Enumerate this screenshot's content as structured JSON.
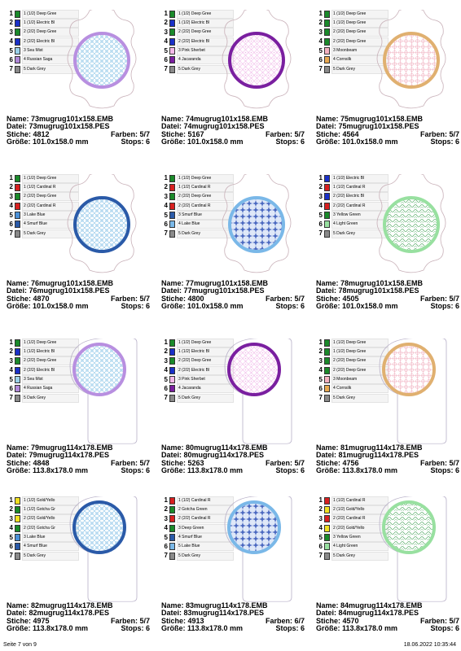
{
  "cells": [
    {
      "name": "Name: 73mugrug101x158.EMB",
      "datei": "Datei: 73mugrug101x158.PES",
      "stiche": "Stiche: 4812",
      "farben": "Farben: 5/7",
      "groesse": "Größe: 101.0x158.0 mm",
      "stops": "Stops: 6",
      "shape": "scallop",
      "ring": "#b88fe0",
      "fill": "#8fc8e8",
      "pattern": "grid",
      "colors": [
        {
          "n": "1",
          "c": "#1a8a2a",
          "t": "1 (1/2) Deep Gree"
        },
        {
          "n": "2",
          "c": "#1a30c8",
          "t": "1 (1/2) Electric Bl"
        },
        {
          "n": "3",
          "c": "#1a8a2a",
          "t": "2 (2/2) Deep Gree"
        },
        {
          "n": "4",
          "c": "#1a30c8",
          "t": "2 (2/2) Electric Bl"
        },
        {
          "n": "5",
          "c": "#9ad0e8",
          "t": "3 Sea Mist"
        },
        {
          "n": "6",
          "c": "#b088d8",
          "t": "4 Russian Saga"
        },
        {
          "n": "7",
          "c": "#8a8a8a",
          "t": "5 Dark Grey"
        }
      ]
    },
    {
      "name": "Name: 74mugrug101x158.EMB",
      "datei": "Datei: 74mugrug101x158.PES",
      "stiche": "Stiche: 5167",
      "farben": "Farben: 5/7",
      "groesse": "Größe: 101.0x158.0 mm",
      "stops": "Stops: 6",
      "shape": "scallop",
      "ring": "#7a1fa0",
      "fill": "#f0b8e8",
      "pattern": "diamond",
      "colors": [
        {
          "n": "1",
          "c": "#1a8a2a",
          "t": "1 (1/2) Deep Gree"
        },
        {
          "n": "2",
          "c": "#1a30c8",
          "t": "1 (1/2) Electric Bl"
        },
        {
          "n": "3",
          "c": "#1a8a2a",
          "t": "2 (2/2) Deep Gree"
        },
        {
          "n": "4",
          "c": "#1a30c8",
          "t": "2 (2/2) Electric Bl"
        },
        {
          "n": "5",
          "c": "#f4b8e8",
          "t": "3 Pink Sherbet"
        },
        {
          "n": "6",
          "c": "#7a1fa0",
          "t": "4 Jacaranda"
        },
        {
          "n": "7",
          "c": "#8a8a8a",
          "t": "5 Dark Grey"
        }
      ]
    },
    {
      "name": "Name: 75mugrug101x158.EMB",
      "datei": "Datei: 75mugrug101x158.PES",
      "stiche": "Stiche: 4564",
      "farben": "Farben: 5/7",
      "groesse": "Größe: 101.0x158.0 mm",
      "stops": "Stops: 6",
      "shape": "scallop",
      "ring": "#e0b070",
      "fill": "#f0b0c0",
      "pattern": "lattice",
      "colors": [
        {
          "n": "1",
          "c": "#1a8a2a",
          "t": "1 (1/2) Deep Gree"
        },
        {
          "n": "2",
          "c": "#1a8a2a",
          "t": "1 (1/2) Deep Gree"
        },
        {
          "n": "3",
          "c": "#1a8a2a",
          "t": "2 (2/2) Deep Gree"
        },
        {
          "n": "4",
          "c": "#1a8a2a",
          "t": "2 (2/2) Deep Gree"
        },
        {
          "n": "5",
          "c": "#f4b0c0",
          "t": "3 Moonbeam"
        },
        {
          "n": "6",
          "c": "#e8a850",
          "t": "4 Cornsilk"
        },
        {
          "n": "7",
          "c": "#8a8a8a",
          "t": "5 Dark Grey"
        }
      ]
    },
    {
      "name": "Name: 76mugrug101x158.EMB",
      "datei": "Datei: 76mugrug101x158.PES",
      "stiche": "Stiche: 4870",
      "farben": "Farben: 5/7",
      "groesse": "Größe: 101.0x158.0 mm",
      "stops": "Stops: 6",
      "shape": "scallop",
      "ring": "#2a5aa8",
      "fill": "#8cc4e8",
      "pattern": "grid",
      "colors": [
        {
          "n": "1",
          "c": "#1a8a2a",
          "t": "1 (1/2) Deep Gree"
        },
        {
          "n": "2",
          "c": "#d82020",
          "t": "1 (1/2) Cardinal R"
        },
        {
          "n": "3",
          "c": "#1a8a2a",
          "t": "2 (2/2) Deep Gree"
        },
        {
          "n": "4",
          "c": "#d82020",
          "t": "2 (2/2) Cardinal R"
        },
        {
          "n": "5",
          "c": "#4a90d8",
          "t": "3 Lake Blue"
        },
        {
          "n": "6",
          "c": "#2a5aa8",
          "t": "4 Smurf Blue"
        },
        {
          "n": "7",
          "c": "#8a8a8a",
          "t": "5 Dark Grey"
        }
      ]
    },
    {
      "name": "Name: 77mugrug101x158.EMB",
      "datei": "Datei: 77mugrug101x158.PES",
      "stiche": "Stiche: 4800",
      "farben": "Farben: 5/7",
      "groesse": "Größe: 101.0x158.0 mm",
      "stops": "Stops: 6",
      "shape": "scallop",
      "ring": "#7ab8e8",
      "fill": "#4a68c0",
      "pattern": "star",
      "colors": [
        {
          "n": "1",
          "c": "#1a8a2a",
          "t": "1 (1/2) Deep Gree"
        },
        {
          "n": "2",
          "c": "#d82020",
          "t": "1 (1/2) Cardinal R"
        },
        {
          "n": "3",
          "c": "#1a8a2a",
          "t": "2 (2/2) Deep Gree"
        },
        {
          "n": "4",
          "c": "#d82020",
          "t": "2 (2/2) Cardinal R"
        },
        {
          "n": "5",
          "c": "#2a5aa8",
          "t": "3 Smurf Blue"
        },
        {
          "n": "6",
          "c": "#7ab8e8",
          "t": "4 Lake Blue"
        },
        {
          "n": "7",
          "c": "#8a8a8a",
          "t": "5 Dark Grey"
        }
      ]
    },
    {
      "name": "Name: 78mugrug101x158.EMB",
      "datei": "Datei: 78mugrug101x158.PES",
      "stiche": "Stiche: 4505",
      "farben": "Farben: 5/7",
      "groesse": "Größe: 101.0x158.0 mm",
      "stops": "Stops: 6",
      "shape": "scallop",
      "ring": "#98e0a0",
      "fill": "#60b070",
      "pattern": "wave",
      "colors": [
        {
          "n": "1",
          "c": "#1a30c8",
          "t": "1 (1/2) Electric Bl"
        },
        {
          "n": "2",
          "c": "#d82020",
          "t": "1 (1/2) Cardinal R"
        },
        {
          "n": "3",
          "c": "#1a30c8",
          "t": "2 (2/2) Electric Bl"
        },
        {
          "n": "4",
          "c": "#d82020",
          "t": "2 (2/2) Cardinal R"
        },
        {
          "n": "5",
          "c": "#1a8a2a",
          "t": "3 Yellow Green"
        },
        {
          "n": "6",
          "c": "#98e0a0",
          "t": "4 Light Green"
        },
        {
          "n": "7",
          "c": "#8a8a8a",
          "t": "5 Dark Grey"
        }
      ]
    },
    {
      "name": "Name: 79mugrug114x178.EMB",
      "datei": "Datei: 79mugrug114x178.PES",
      "stiche": "Stiche: 4848",
      "farben": "Farben: 5/7",
      "groesse": "Größe: 113.8x178.0 mm",
      "stops": "Stops: 6",
      "shape": "tag",
      "ring": "#b88fe0",
      "fill": "#8fc8e8",
      "pattern": "grid",
      "colors": [
        {
          "n": "1",
          "c": "#1a8a2a",
          "t": "1 (1/2) Deep Gree"
        },
        {
          "n": "2",
          "c": "#1a30c8",
          "t": "1 (1/2) Electric Bl"
        },
        {
          "n": "3",
          "c": "#1a8a2a",
          "t": "2 (2/2) Deep Gree"
        },
        {
          "n": "4",
          "c": "#1a30c8",
          "t": "2 (2/2) Electric Bl"
        },
        {
          "n": "5",
          "c": "#9ad0e8",
          "t": "3 Sea Mist"
        },
        {
          "n": "6",
          "c": "#b088d8",
          "t": "4 Russian Saga"
        },
        {
          "n": "7",
          "c": "#8a8a8a",
          "t": "5 Dark Grey"
        }
      ]
    },
    {
      "name": "Name: 80mugrug114x178.EMB",
      "datei": "Datei: 80mugrug114x178.PES",
      "stiche": "Stiche: 5263",
      "farben": "Farben: 5/7",
      "groesse": "Größe: 113.8x178.0 mm",
      "stops": "Stops: 6",
      "shape": "tag",
      "ring": "#7a1fa0",
      "fill": "#f0b8e8",
      "pattern": "diamond",
      "colors": [
        {
          "n": "1",
          "c": "#1a8a2a",
          "t": "1 (1/2) Deep Gree"
        },
        {
          "n": "2",
          "c": "#1a30c8",
          "t": "1 (1/2) Electric Bl"
        },
        {
          "n": "3",
          "c": "#1a8a2a",
          "t": "2 (2/2) Deep Gree"
        },
        {
          "n": "4",
          "c": "#1a30c8",
          "t": "2 (2/2) Electric Bl"
        },
        {
          "n": "5",
          "c": "#f4b8e8",
          "t": "3 Pink Sherbet"
        },
        {
          "n": "6",
          "c": "#7a1fa0",
          "t": "4 Jacaranda"
        },
        {
          "n": "7",
          "c": "#8a8a8a",
          "t": "5 Dark Grey"
        }
      ]
    },
    {
      "name": "Name: 81mugrug114x178.EMB",
      "datei": "Datei: 81mugrug114x178.PES",
      "stiche": "Stiche: 4756",
      "farben": "Farben: 5/7",
      "groesse": "Größe: 113.8x178.0 mm",
      "stops": "Stops: 6",
      "shape": "tag",
      "ring": "#e0b070",
      "fill": "#f0b0c0",
      "pattern": "lattice",
      "colors": [
        {
          "n": "1",
          "c": "#1a8a2a",
          "t": "1 (1/2) Deep Gree"
        },
        {
          "n": "2",
          "c": "#1a8a2a",
          "t": "1 (1/2) Deep Gree"
        },
        {
          "n": "3",
          "c": "#1a8a2a",
          "t": "2 (2/2) Deep Gree"
        },
        {
          "n": "4",
          "c": "#1a8a2a",
          "t": "2 (2/2) Deep Gree"
        },
        {
          "n": "5",
          "c": "#f4b0c0",
          "t": "3 Moonbeam"
        },
        {
          "n": "6",
          "c": "#e8a850",
          "t": "4 Cornsilk"
        },
        {
          "n": "7",
          "c": "#8a8a8a",
          "t": "5 Dark Grey"
        }
      ]
    },
    {
      "name": "Name: 82mugrug114x178.EMB",
      "datei": "Datei: 82mugrug114x178.PES",
      "stiche": "Stiche: 4975",
      "farben": "Farben: 5/7",
      "groesse": "Größe: 113.8x178.0 mm",
      "stops": "Stops: 6",
      "shape": "tag",
      "ring": "#2a5aa8",
      "fill": "#8cc4e8",
      "pattern": "grid",
      "colors": [
        {
          "n": "1",
          "c": "#f0e020",
          "t": "1 (1/2) Gold/Yello"
        },
        {
          "n": "2",
          "c": "#1a8a2a",
          "t": "1 (1/2) Gotcha Gr"
        },
        {
          "n": "3",
          "c": "#f0e020",
          "t": "2 (2/2) Gold/Yello"
        },
        {
          "n": "4",
          "c": "#1a8a2a",
          "t": "2 (2/2) Gotcha Gr"
        },
        {
          "n": "5",
          "c": "#4a90d8",
          "t": "3 Lake Blue"
        },
        {
          "n": "6",
          "c": "#2a5aa8",
          "t": "4 Smurf Blue"
        },
        {
          "n": "7",
          "c": "#8a8a8a",
          "t": "5 Dark Grey"
        }
      ]
    },
    {
      "name": "Name: 83mugrug114x178.EMB",
      "datei": "Datei: 83mugrug114x178.PES",
      "stiche": "Stiche: 4913",
      "farben": "Farben: 6/7",
      "groesse": "Größe: 113.8x178.0 mm",
      "stops": "Stops: 6",
      "shape": "tag",
      "ring": "#7ab8e8",
      "fill": "#4a68c0",
      "pattern": "star",
      "colors": [
        {
          "n": "1",
          "c": "#d82020",
          "t": "1 (1/2) Cardinal R"
        },
        {
          "n": "2",
          "c": "#1a8a2a",
          "t": "2 Gotcha Green"
        },
        {
          "n": "3",
          "c": "#d82020",
          "t": "2 (2/2) Cardinal R"
        },
        {
          "n": "4",
          "c": "#1a8a2a",
          "t": "3 Deep Green"
        },
        {
          "n": "5",
          "c": "#2a5aa8",
          "t": "4 Smurf Blue"
        },
        {
          "n": "6",
          "c": "#7ab8e8",
          "t": "5 Lake Blue"
        },
        {
          "n": "7",
          "c": "#8a8a8a",
          "t": "5 Dark Grey"
        }
      ]
    },
    {
      "name": "Name: 84mugrug114x178.EMB",
      "datei": "Datei: 84mugrug114x178.PES",
      "stiche": "Stiche: 4570",
      "farben": "Farben: 5/7",
      "groesse": "Größe: 113.8x178.0 mm",
      "stops": "Stops: 6",
      "shape": "tag",
      "ring": "#98e0a0",
      "fill": "#60b070",
      "pattern": "wave",
      "colors": [
        {
          "n": "1",
          "c": "#d82020",
          "t": "1 (1/2) Cardinal R"
        },
        {
          "n": "2",
          "c": "#f0e020",
          "t": "2 (1/2) Gold/Yello"
        },
        {
          "n": "3",
          "c": "#d82020",
          "t": "2 (2/2) Cardinal R"
        },
        {
          "n": "4",
          "c": "#f0e020",
          "t": "2 (2/2) Gold/Yello"
        },
        {
          "n": "5",
          "c": "#1a8a2a",
          "t": "3 Yellow Green"
        },
        {
          "n": "6",
          "c": "#98e0a0",
          "t": "4 Light Green"
        },
        {
          "n": "7",
          "c": "#8a8a8a",
          "t": "5 Dark Grey"
        }
      ]
    }
  ],
  "footer": {
    "page": "Seite 7 von 9",
    "datetime": "18.06.2022 10:35:44"
  }
}
